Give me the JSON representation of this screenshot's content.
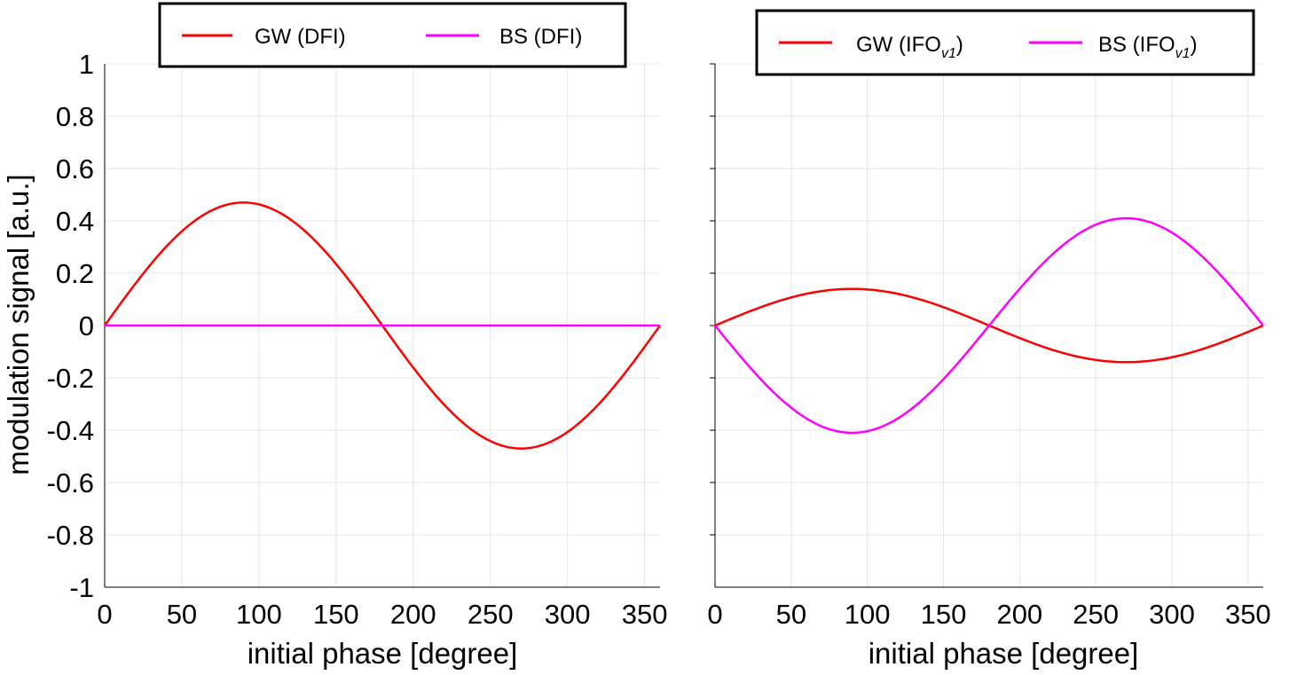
{
  "chart_data": [
    {
      "type": "line",
      "title": "",
      "xlabel": "initial phase [degree]",
      "ylabel": "modulation signal [a.u.]",
      "xlim": [
        0,
        360
      ],
      "ylim": [
        -1,
        1
      ],
      "xticks": [
        "0",
        "50",
        "100",
        "150",
        "200",
        "250",
        "300",
        "350"
      ],
      "yticks": [
        "1",
        "0.8",
        "0.6",
        "0.4",
        "0.2",
        "0",
        "-0.2",
        "-0.4",
        "-0.6",
        "-0.8",
        "-1"
      ],
      "grid": true,
      "legend_position": "top",
      "series": [
        {
          "name": "GW (DFI)",
          "color": "#ff0000",
          "function": "sin",
          "amplitude": 0.47
        },
        {
          "name": "BS (DFI)",
          "color": "#ff00ff",
          "function": "sin",
          "amplitude": 0.0
        }
      ]
    },
    {
      "type": "line",
      "title": "",
      "xlabel": "initial phase [degree]",
      "ylabel": "",
      "xlim": [
        0,
        360
      ],
      "ylim": [
        -1,
        1
      ],
      "xticks": [
        "0",
        "50",
        "100",
        "150",
        "200",
        "250",
        "300",
        "350"
      ],
      "yticks": [],
      "grid": true,
      "legend_position": "top",
      "series": [
        {
          "name": "GW (IFO",
          "name_subscript": "v1",
          "name_suffix": ")",
          "color": "#ff0000",
          "function": "sin",
          "amplitude": 0.14
        },
        {
          "name": "BS (IFO",
          "name_subscript": "v1",
          "name_suffix": ")",
          "color": "#ff00ff",
          "function": "sin",
          "amplitude": -0.41
        }
      ]
    }
  ]
}
